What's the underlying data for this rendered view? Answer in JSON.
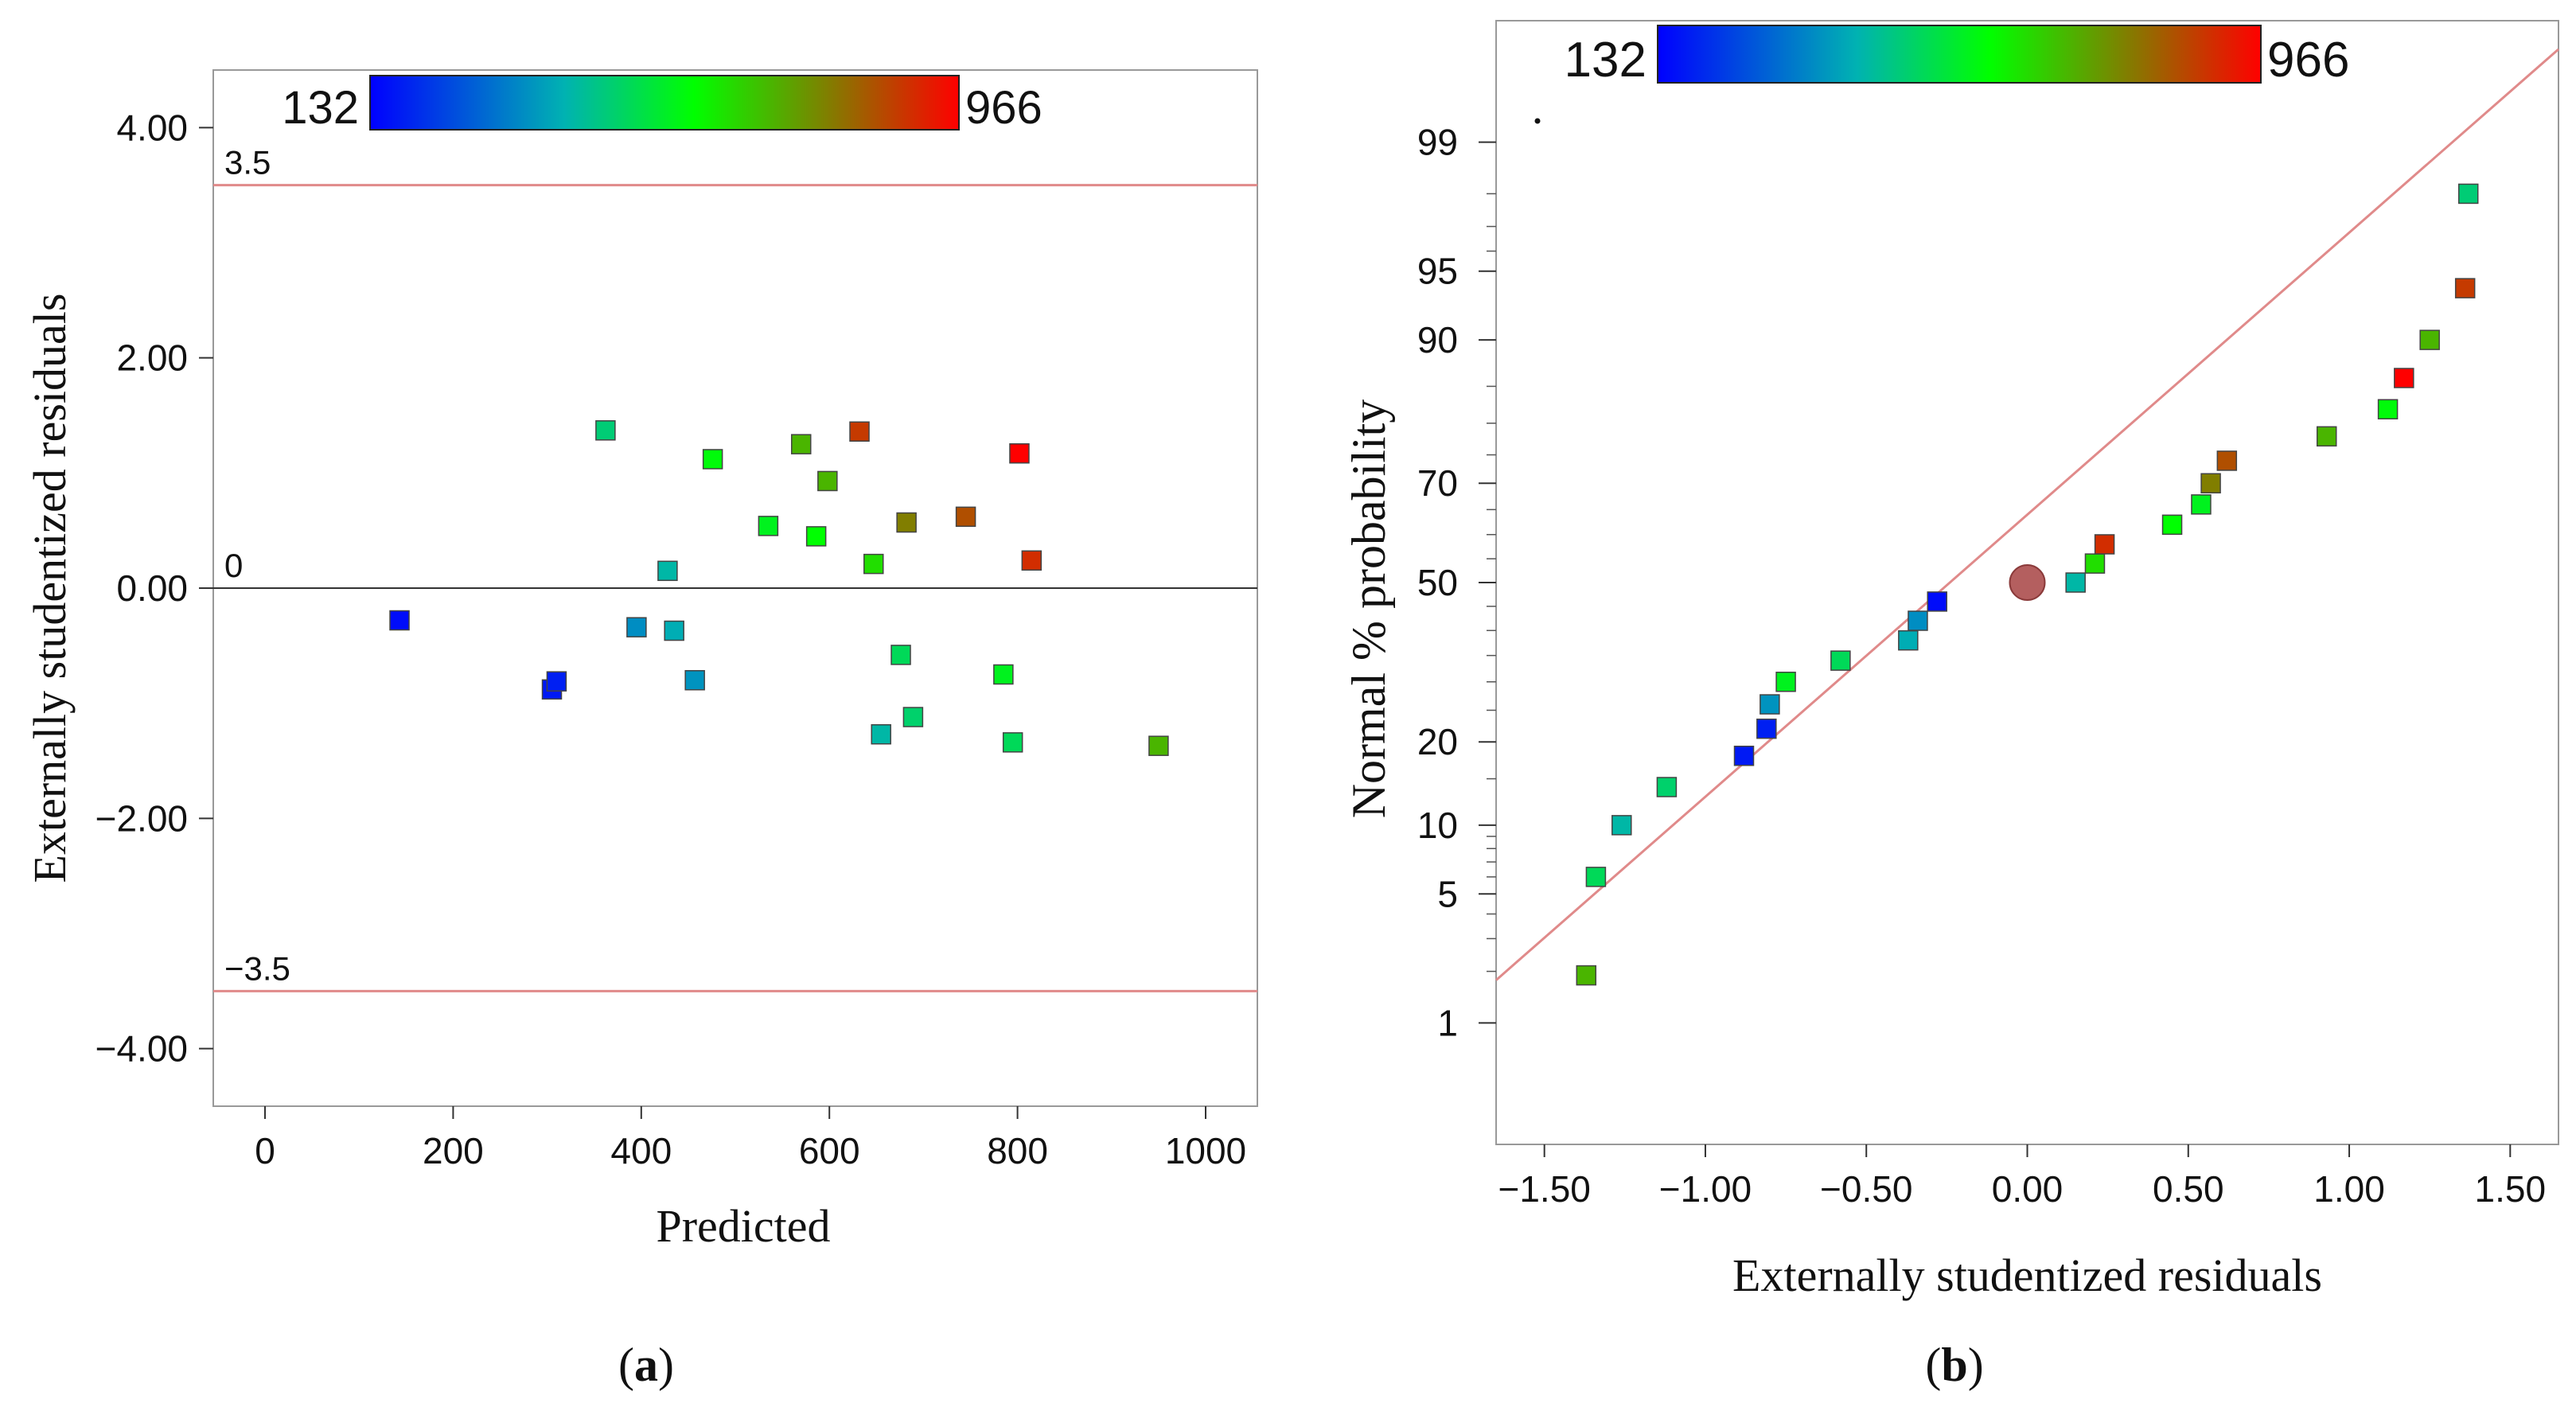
{
  "colors": {
    "ref_line": "#e08a8a",
    "zero_line": "#333333",
    "frame": "#999999",
    "center_marker": "#b45f5f",
    "gradient": [
      "#0000ff",
      "#00b2b2",
      "#00ff00",
      "#ff0000"
    ]
  },
  "chart_data": [
    {
      "type": "scatter",
      "panel_label": "(a)",
      "panel_letter": "a",
      "xlabel": "Predicted",
      "ylabel": "Externally studentized residuals",
      "xlim": [
        -55,
        1055
      ],
      "ylim": [
        -4.5,
        4.5
      ],
      "x_ticks": [
        0,
        200,
        400,
        600,
        800,
        1000
      ],
      "x_tick_labels": [
        "0",
        "200",
        "400",
        "600",
        "800",
        "1000"
      ],
      "y_ticks": [
        4,
        2,
        0,
        -2,
        -4
      ],
      "y_tick_labels": [
        "4.00",
        "2.00",
        "0.00",
        "−2.00",
        "−4.00"
      ],
      "colorbar": {
        "min_label": "132",
        "max_label": "966",
        "min": 132,
        "max": 966
      },
      "reference_lines": [
        {
          "value": 3.5,
          "label": "3.5",
          "kind": "limit"
        },
        {
          "value": 0,
          "label": "0",
          "kind": "zero"
        },
        {
          "value": -3.5,
          "label": "−3.5",
          "kind": "limit"
        }
      ],
      "points": [
        {
          "x": 143,
          "y": -0.28,
          "v": 150
        },
        {
          "x": 305,
          "y": -0.88,
          "v": 170
        },
        {
          "x": 310,
          "y": -0.81,
          "v": 180
        },
        {
          "x": 362,
          "y": 1.37,
          "v": 470
        },
        {
          "x": 395,
          "y": -0.34,
          "v": 350
        },
        {
          "x": 428,
          "y": 0.15,
          "v": 420
        },
        {
          "x": 435,
          "y": -0.37,
          "v": 400
        },
        {
          "x": 457,
          "y": -0.8,
          "v": 360
        },
        {
          "x": 476,
          "y": 1.12,
          "v": 580
        },
        {
          "x": 535,
          "y": 0.54,
          "v": 560
        },
        {
          "x": 570,
          "y": 1.25,
          "v": 700
        },
        {
          "x": 586,
          "y": 0.45,
          "v": 590
        },
        {
          "x": 598,
          "y": 0.93,
          "v": 700
        },
        {
          "x": 632,
          "y": 1.36,
          "v": 880
        },
        {
          "x": 647,
          "y": 0.21,
          "v": 640
        },
        {
          "x": 655,
          "y": -1.27,
          "v": 420
        },
        {
          "x": 676,
          "y": -0.58,
          "v": 500
        },
        {
          "x": 682,
          "y": 0.57,
          "v": 780
        },
        {
          "x": 689,
          "y": -1.12,
          "v": 480
        },
        {
          "x": 745,
          "y": 0.62,
          "v": 850
        },
        {
          "x": 785,
          "y": -0.75,
          "v": 560
        },
        {
          "x": 795,
          "y": -1.34,
          "v": 500
        },
        {
          "x": 802,
          "y": 1.17,
          "v": 966
        },
        {
          "x": 815,
          "y": 0.24,
          "v": 900
        },
        {
          "x": 950,
          "y": -1.37,
          "v": 700
        }
      ]
    },
    {
      "type": "scatter",
      "panel_label": "(b)",
      "panel_letter": "b",
      "xlabel": "Externally studentized residuals",
      "ylabel": "Normal % probability",
      "xlim": [
        -1.65,
        1.65
      ],
      "prob_range": [
        0.15,
        99.85
      ],
      "x_ticks": [
        -1.5,
        -1,
        -0.5,
        0,
        0.5,
        1,
        1.5
      ],
      "x_tick_labels": [
        "−1.50",
        "−1.00",
        "−0.50",
        "0.00",
        "0.50",
        "1.00",
        "1.50"
      ],
      "y_ticks": [
        1,
        5,
        10,
        20,
        50,
        70,
        90,
        95,
        99
      ],
      "y_tick_labels": [
        "1",
        "5",
        "10",
        "20",
        "50",
        "70",
        "90",
        "95",
        "99"
      ],
      "minor_probabilities": [
        2,
        3,
        4,
        6,
        7,
        8,
        9,
        15,
        25,
        30,
        35,
        40,
        45,
        55,
        60,
        65,
        75,
        80,
        85,
        96,
        97,
        98
      ],
      "colorbar": {
        "min_label": "132",
        "max_label": "966",
        "min": 132,
        "max": 966
      },
      "fit_line": {
        "x0": -1.65,
        "x1": 1.65,
        "z_at_x0": -2.1,
        "slope_z_per_x": 1.49
      },
      "center_point": {
        "x": 0,
        "p": 50
      },
      "points": [
        {
          "x": -1.37,
          "p": 1.9,
          "v": 700
        },
        {
          "x": -1.34,
          "p": 6.0,
          "v": 500
        },
        {
          "x": -1.26,
          "p": 10.0,
          "v": 420
        },
        {
          "x": -1.12,
          "p": 14.0,
          "v": 480
        },
        {
          "x": -0.88,
          "p": 18.0,
          "v": 170
        },
        {
          "x": -0.81,
          "p": 22.0,
          "v": 180
        },
        {
          "x": -0.8,
          "p": 26.0,
          "v": 360
        },
        {
          "x": -0.75,
          "p": 30.0,
          "v": 560
        },
        {
          "x": -0.58,
          "p": 34.0,
          "v": 500
        },
        {
          "x": -0.37,
          "p": 38.0,
          "v": 400
        },
        {
          "x": -0.34,
          "p": 42.0,
          "v": 350
        },
        {
          "x": -0.28,
          "p": 46.0,
          "v": 150
        },
        {
          "x": 0.15,
          "p": 50.0,
          "v": 420
        },
        {
          "x": 0.21,
          "p": 54.0,
          "v": 640
        },
        {
          "x": 0.24,
          "p": 58.0,
          "v": 900
        },
        {
          "x": 0.45,
          "p": 62.0,
          "v": 590
        },
        {
          "x": 0.54,
          "p": 66.0,
          "v": 560
        },
        {
          "x": 0.57,
          "p": 70.0,
          "v": 780
        },
        {
          "x": 0.62,
          "p": 74.0,
          "v": 850
        },
        {
          "x": 0.93,
          "p": 78.0,
          "v": 700
        },
        {
          "x": 1.12,
          "p": 82.0,
          "v": 580
        },
        {
          "x": 1.17,
          "p": 86.0,
          "v": 966
        },
        {
          "x": 1.25,
          "p": 90.0,
          "v": 700
        },
        {
          "x": 1.36,
          "p": 94.0,
          "v": 880
        },
        {
          "x": 1.37,
          "p": 98.0,
          "v": 470
        }
      ]
    }
  ]
}
